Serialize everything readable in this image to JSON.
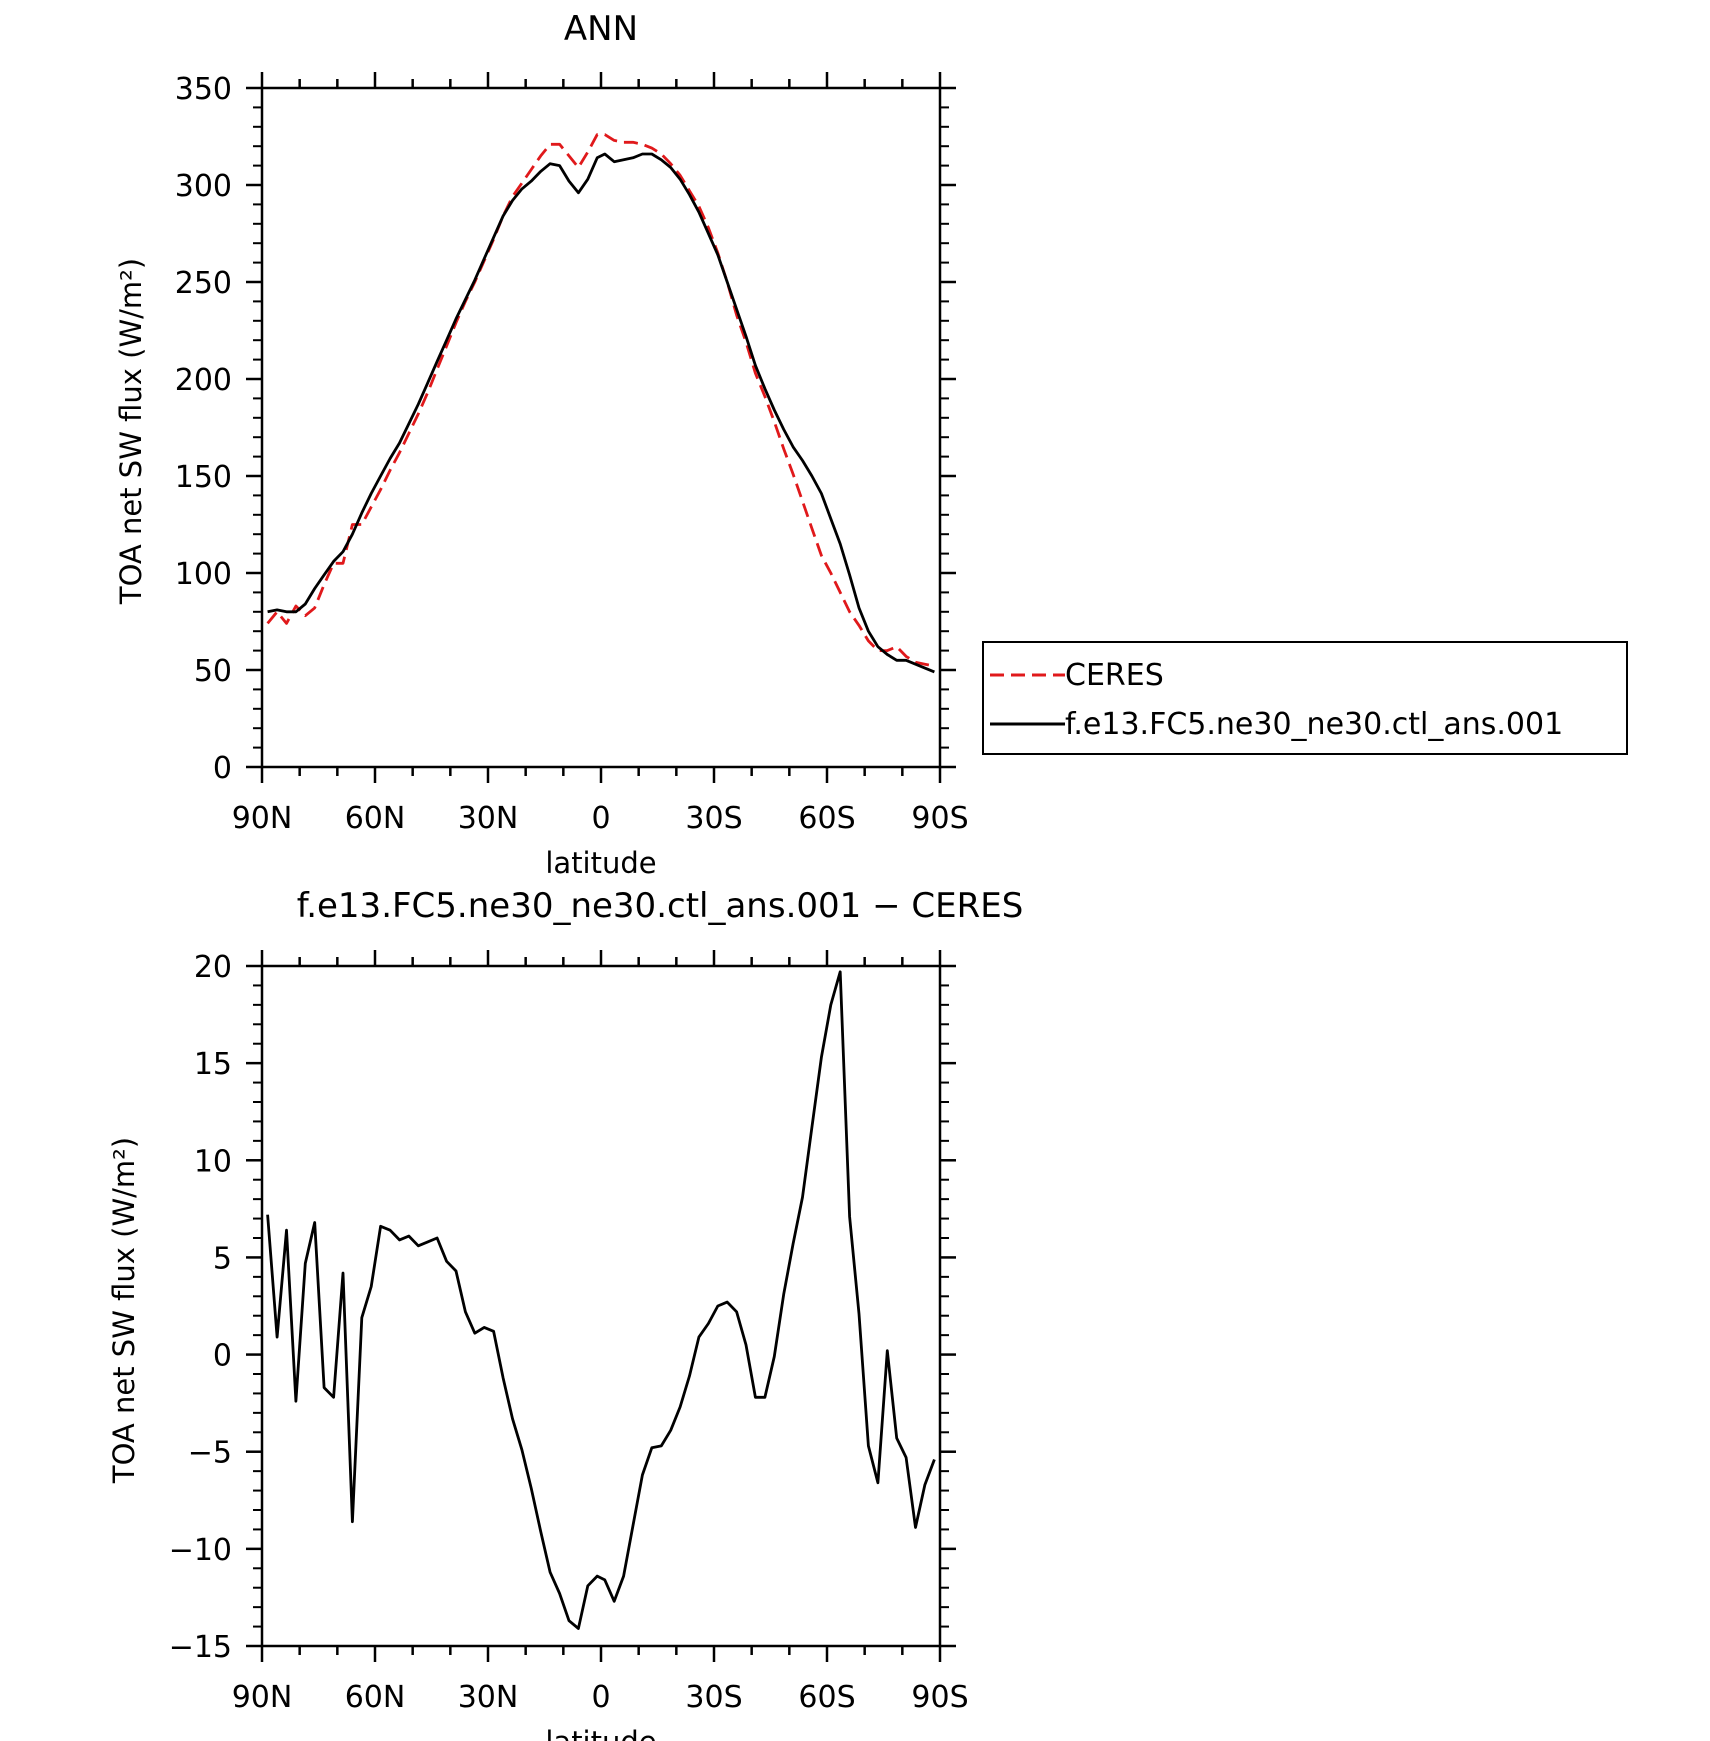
{
  "chart_data": [
    {
      "type": "line",
      "title": "ANN",
      "xlabel": "latitude",
      "ylabel": "TOA net SW flux (W/m²)",
      "xlim": [
        90,
        -90
      ],
      "ylim": [
        0,
        350
      ],
      "x_ticks": [
        {
          "value": 90,
          "label": "90N"
        },
        {
          "value": 60,
          "label": "60N"
        },
        {
          "value": 30,
          "label": "30N"
        },
        {
          "value": 0,
          "label": "0"
        },
        {
          "value": -30,
          "label": "30S"
        },
        {
          "value": -60,
          "label": "60S"
        },
        {
          "value": -90,
          "label": "90S"
        }
      ],
      "y_ticks": [
        0,
        50,
        100,
        150,
        200,
        250,
        300,
        350
      ],
      "legend": {
        "placement": "right of plot, bottom"
      },
      "series": [
        {
          "name": "CERES",
          "color": "#e0191b",
          "dash": "dashed",
          "x": [
            88.5,
            86,
            83.5,
            81,
            78.5,
            76,
            73.5,
            71,
            68.5,
            66,
            63.5,
            61,
            58.5,
            56,
            53.5,
            51,
            48.5,
            46,
            43.5,
            41,
            38.5,
            36,
            33.5,
            31,
            28.5,
            26,
            23.5,
            21,
            18.5,
            16,
            13.5,
            11,
            8.5,
            6,
            3.5,
            1,
            -1,
            -3.5,
            -6,
            -8.5,
            -11,
            -13.5,
            -16,
            -18.5,
            -21,
            -23.5,
            -26,
            -28.5,
            -31,
            -33.5,
            -36,
            -38.5,
            -41,
            -43.5,
            -46,
            -48.5,
            -51,
            -53.5,
            -56,
            -58.5,
            -61,
            -63.5,
            -66,
            -68.5,
            -71,
            -73.5,
            -76,
            -78.5,
            -81,
            -83.5,
            -86,
            -88.5
          ],
          "y": [
            74,
            80,
            74,
            83,
            78,
            82,
            94,
            105,
            105,
            125,
            125,
            134,
            143,
            153,
            162,
            172,
            182,
            193,
            205,
            217,
            229,
            240,
            250,
            261,
            272,
            284,
            294,
            301,
            308,
            315,
            321,
            321,
            315,
            309,
            317,
            326,
            326,
            323,
            322,
            322,
            321,
            319,
            316,
            311,
            305,
            297,
            289,
            278,
            265,
            250,
            233,
            219,
            203,
            191,
            178,
            164,
            151,
            137,
            123,
            109,
            100,
            90,
            80,
            73,
            65,
            60,
            60,
            62,
            57,
            54,
            53,
            52
          ]
        },
        {
          "name": "f.e13.FC5.ne30_ne30.ctl_ans.001",
          "color": "#000000",
          "dash": "solid",
          "x": [
            88.5,
            86,
            83.5,
            81,
            78.5,
            76,
            73.5,
            71,
            68.5,
            66,
            63.5,
            61,
            58.5,
            56,
            53.5,
            51,
            48.5,
            46,
            43.5,
            41,
            38.5,
            36,
            33.5,
            31,
            28.5,
            26,
            23.5,
            21,
            18.5,
            16,
            13.5,
            11,
            8.5,
            6,
            3.5,
            1,
            -1,
            -3.5,
            -6,
            -8.5,
            -11,
            -13.5,
            -16,
            -18.5,
            -21,
            -23.5,
            -26,
            -28.5,
            -31,
            -33.5,
            -36,
            -38.5,
            -41,
            -43.5,
            -46,
            -48.5,
            -51,
            -53.5,
            -56,
            -58.5,
            -61,
            -63.5,
            -66,
            -68.5,
            -71,
            -73.5,
            -76,
            -78.5,
            -81,
            -83.5,
            -86,
            -88.5
          ],
          "y": [
            80,
            81,
            80,
            80,
            84,
            92,
            99,
            106,
            111,
            120,
            131,
            141,
            150,
            159,
            167,
            177,
            187,
            198,
            209,
            220,
            231,
            241,
            251,
            262,
            273,
            284,
            292,
            298,
            302,
            307,
            311,
            310,
            302,
            296,
            303,
            314,
            316,
            312,
            313,
            314,
            316,
            316,
            313,
            309,
            303,
            295,
            286,
            275,
            264,
            250,
            236,
            222,
            207,
            195,
            184,
            174,
            165,
            158,
            150,
            141,
            128,
            115,
            99,
            82,
            70,
            62,
            58,
            55,
            55,
            53,
            51,
            49
          ]
        }
      ]
    },
    {
      "type": "line",
      "title": "f.e13.FC5.ne30_ne30.ctl_ans.001 − CERES",
      "xlabel": "latitude",
      "ylabel": "TOA net SW flux (W/m²)",
      "xlim": [
        90,
        -90
      ],
      "ylim": [
        -15,
        20
      ],
      "x_ticks": [
        {
          "value": 90,
          "label": "90N"
        },
        {
          "value": 60,
          "label": "60N"
        },
        {
          "value": 30,
          "label": "30N"
        },
        {
          "value": 0,
          "label": "0"
        },
        {
          "value": -30,
          "label": "30S"
        },
        {
          "value": -60,
          "label": "60S"
        },
        {
          "value": -90,
          "label": "90S"
        }
      ],
      "y_ticks": [
        {
          "value": -15,
          "label": "−15"
        },
        {
          "value": -10,
          "label": "−10"
        },
        {
          "value": -5,
          "label": "−5"
        },
        {
          "value": 0,
          "label": "0"
        },
        {
          "value": 5,
          "label": "5"
        },
        {
          "value": 10,
          "label": "10"
        },
        {
          "value": 15,
          "label": "15"
        },
        {
          "value": 20,
          "label": "20"
        }
      ],
      "series": [
        {
          "color": "#000000",
          "dash": "solid",
          "x": [
            88.5,
            86,
            83.5,
            81,
            78.5,
            76,
            73.5,
            71,
            68.5,
            66,
            63.5,
            61,
            58.5,
            56,
            53.5,
            51,
            48.5,
            46,
            43.5,
            41,
            38.5,
            36,
            33.5,
            31,
            28.5,
            26,
            23.5,
            21,
            18.5,
            16,
            13.5,
            11,
            8.5,
            6,
            3.5,
            1,
            -1,
            -3.5,
            -6,
            -8.5,
            -11,
            -13.5,
            -16,
            -18.5,
            -21,
            -23.5,
            -26,
            -28.5,
            -31,
            -33.5,
            -36,
            -38.5,
            -41,
            -43.5,
            -46,
            -48.5,
            -51,
            -53.5,
            -56,
            -58.5,
            -61,
            -63.5,
            -66,
            -68.5,
            -71,
            -73.5,
            -76,
            -78.5,
            -81,
            -83.5,
            -86,
            -88.5
          ],
          "y": [
            7.2,
            0.9,
            6.4,
            -2.4,
            4.7,
            6.8,
            -1.7,
            -2.2,
            4.2,
            -8.6,
            1.9,
            3.5,
            6.6,
            6.4,
            5.9,
            6.1,
            5.6,
            5.8,
            6.0,
            4.8,
            4.3,
            2.2,
            1.1,
            1.4,
            1.2,
            -1.2,
            -3.3,
            -4.9,
            -6.9,
            -9.1,
            -11.2,
            -12.3,
            -13.7,
            -14.1,
            -11.9,
            -11.4,
            -11.6,
            -12.7,
            -11.4,
            -8.8,
            -6.2,
            -4.8,
            -4.7,
            -3.9,
            -2.7,
            -1.1,
            0.9,
            1.6,
            2.5,
            2.7,
            2.2,
            0.5,
            -2.2,
            -2.2,
            -0.1,
            3.1,
            5.7,
            8.1,
            11.7,
            15.3,
            18.0,
            19.7,
            7.1,
            2.1,
            -4.7,
            -6.6,
            0.2,
            -4.3,
            -5.3,
            -8.9,
            -6.7,
            -5.4
          ]
        }
      ]
    }
  ]
}
